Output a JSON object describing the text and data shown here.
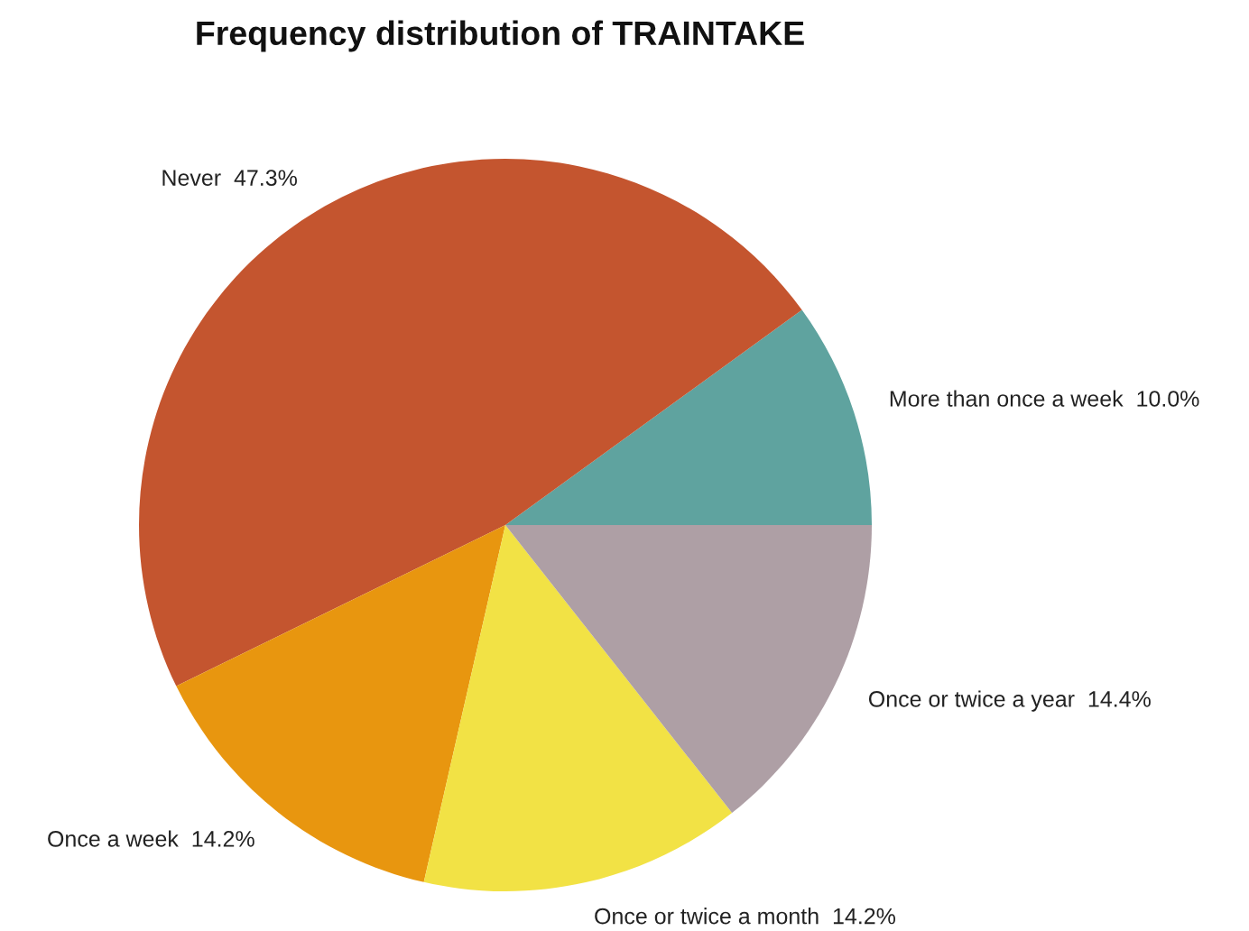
{
  "chart_data": {
    "type": "pie",
    "title": "Frequency distribution of TRAINTAKE",
    "categories": [
      "More than once a week",
      "Never",
      "Once a week",
      "Once or twice a month",
      "Once or twice a year"
    ],
    "values": [
      10.0,
      47.3,
      14.2,
      14.2,
      14.4
    ],
    "value_labels": [
      "10.0%",
      "47.3%",
      "14.2%",
      "14.2%",
      "14.4%"
    ],
    "colors": [
      "#5fa39f",
      "#c4552f",
      "#e8960f",
      "#f2e245",
      "#ae9fa5"
    ],
    "legend": false
  }
}
